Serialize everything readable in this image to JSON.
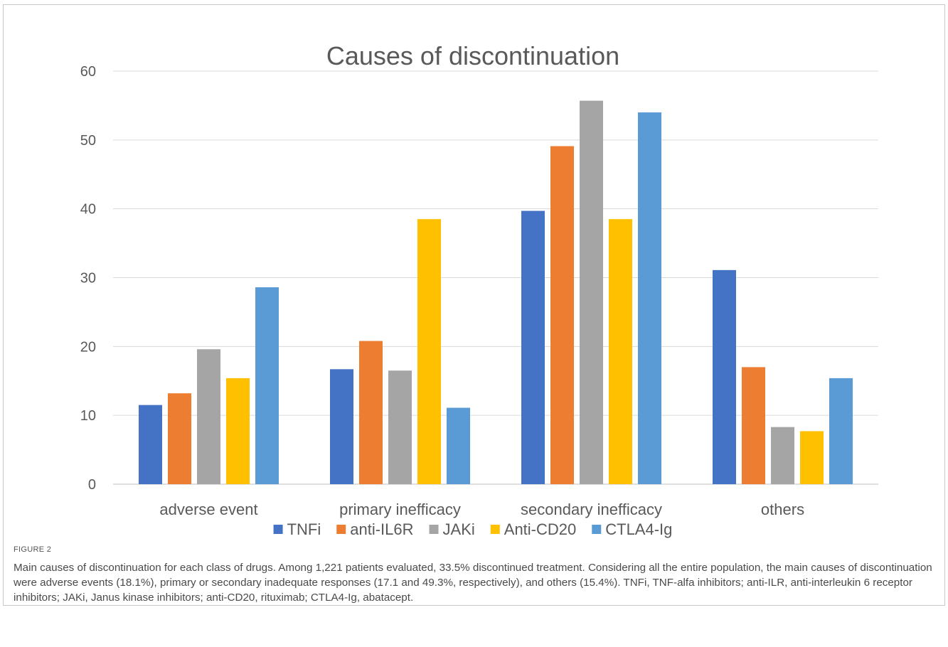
{
  "figure_label": "FIGURE 2",
  "caption": "Main causes of discontinuation for each class of drugs. Among 1,221 patients evaluated, 33.5% discontinued treatment. Considering all the entire population, the main causes of discontinuation were adverse events (18.1%), primary or secondary inadequate responses (17.1 and 49.3%, respectively), and others (15.4%). TNFi, TNF-alfa inhibitors; anti-ILR, anti-interleukin 6 receptor inhibitors; JAKi, Janus kinase inhibitors; anti-CD20, rituximab; CTLA4-Ig, abatacept.",
  "chart_data": {
    "type": "bar",
    "title": "Causes of discontinuation",
    "categories": [
      "adverse event",
      "primary inefficacy",
      "secondary inefficacy",
      "others"
    ],
    "series": [
      {
        "name": "TNFi",
        "color": "#4472c4",
        "values": [
          11.5,
          16.7,
          39.7,
          31.1
        ]
      },
      {
        "name": "anti-IL6R",
        "color": "#ed7d31",
        "values": [
          13.2,
          20.8,
          49.1,
          17.0
        ]
      },
      {
        "name": "JAKi",
        "color": "#a5a5a5",
        "values": [
          19.6,
          16.5,
          55.7,
          8.3
        ]
      },
      {
        "name": "Anti-CD20",
        "color": "#ffc000",
        "values": [
          15.4,
          38.5,
          38.5,
          7.7
        ]
      },
      {
        "name": "CTLA4-Ig",
        "color": "#5b9bd5",
        "values": [
          28.6,
          11.1,
          54.0,
          15.4
        ]
      }
    ],
    "ylim": [
      0,
      60
    ],
    "yticks": [
      0,
      10,
      20,
      30,
      40,
      50,
      60
    ],
    "grid": true,
    "legend_position": "bottom"
  }
}
